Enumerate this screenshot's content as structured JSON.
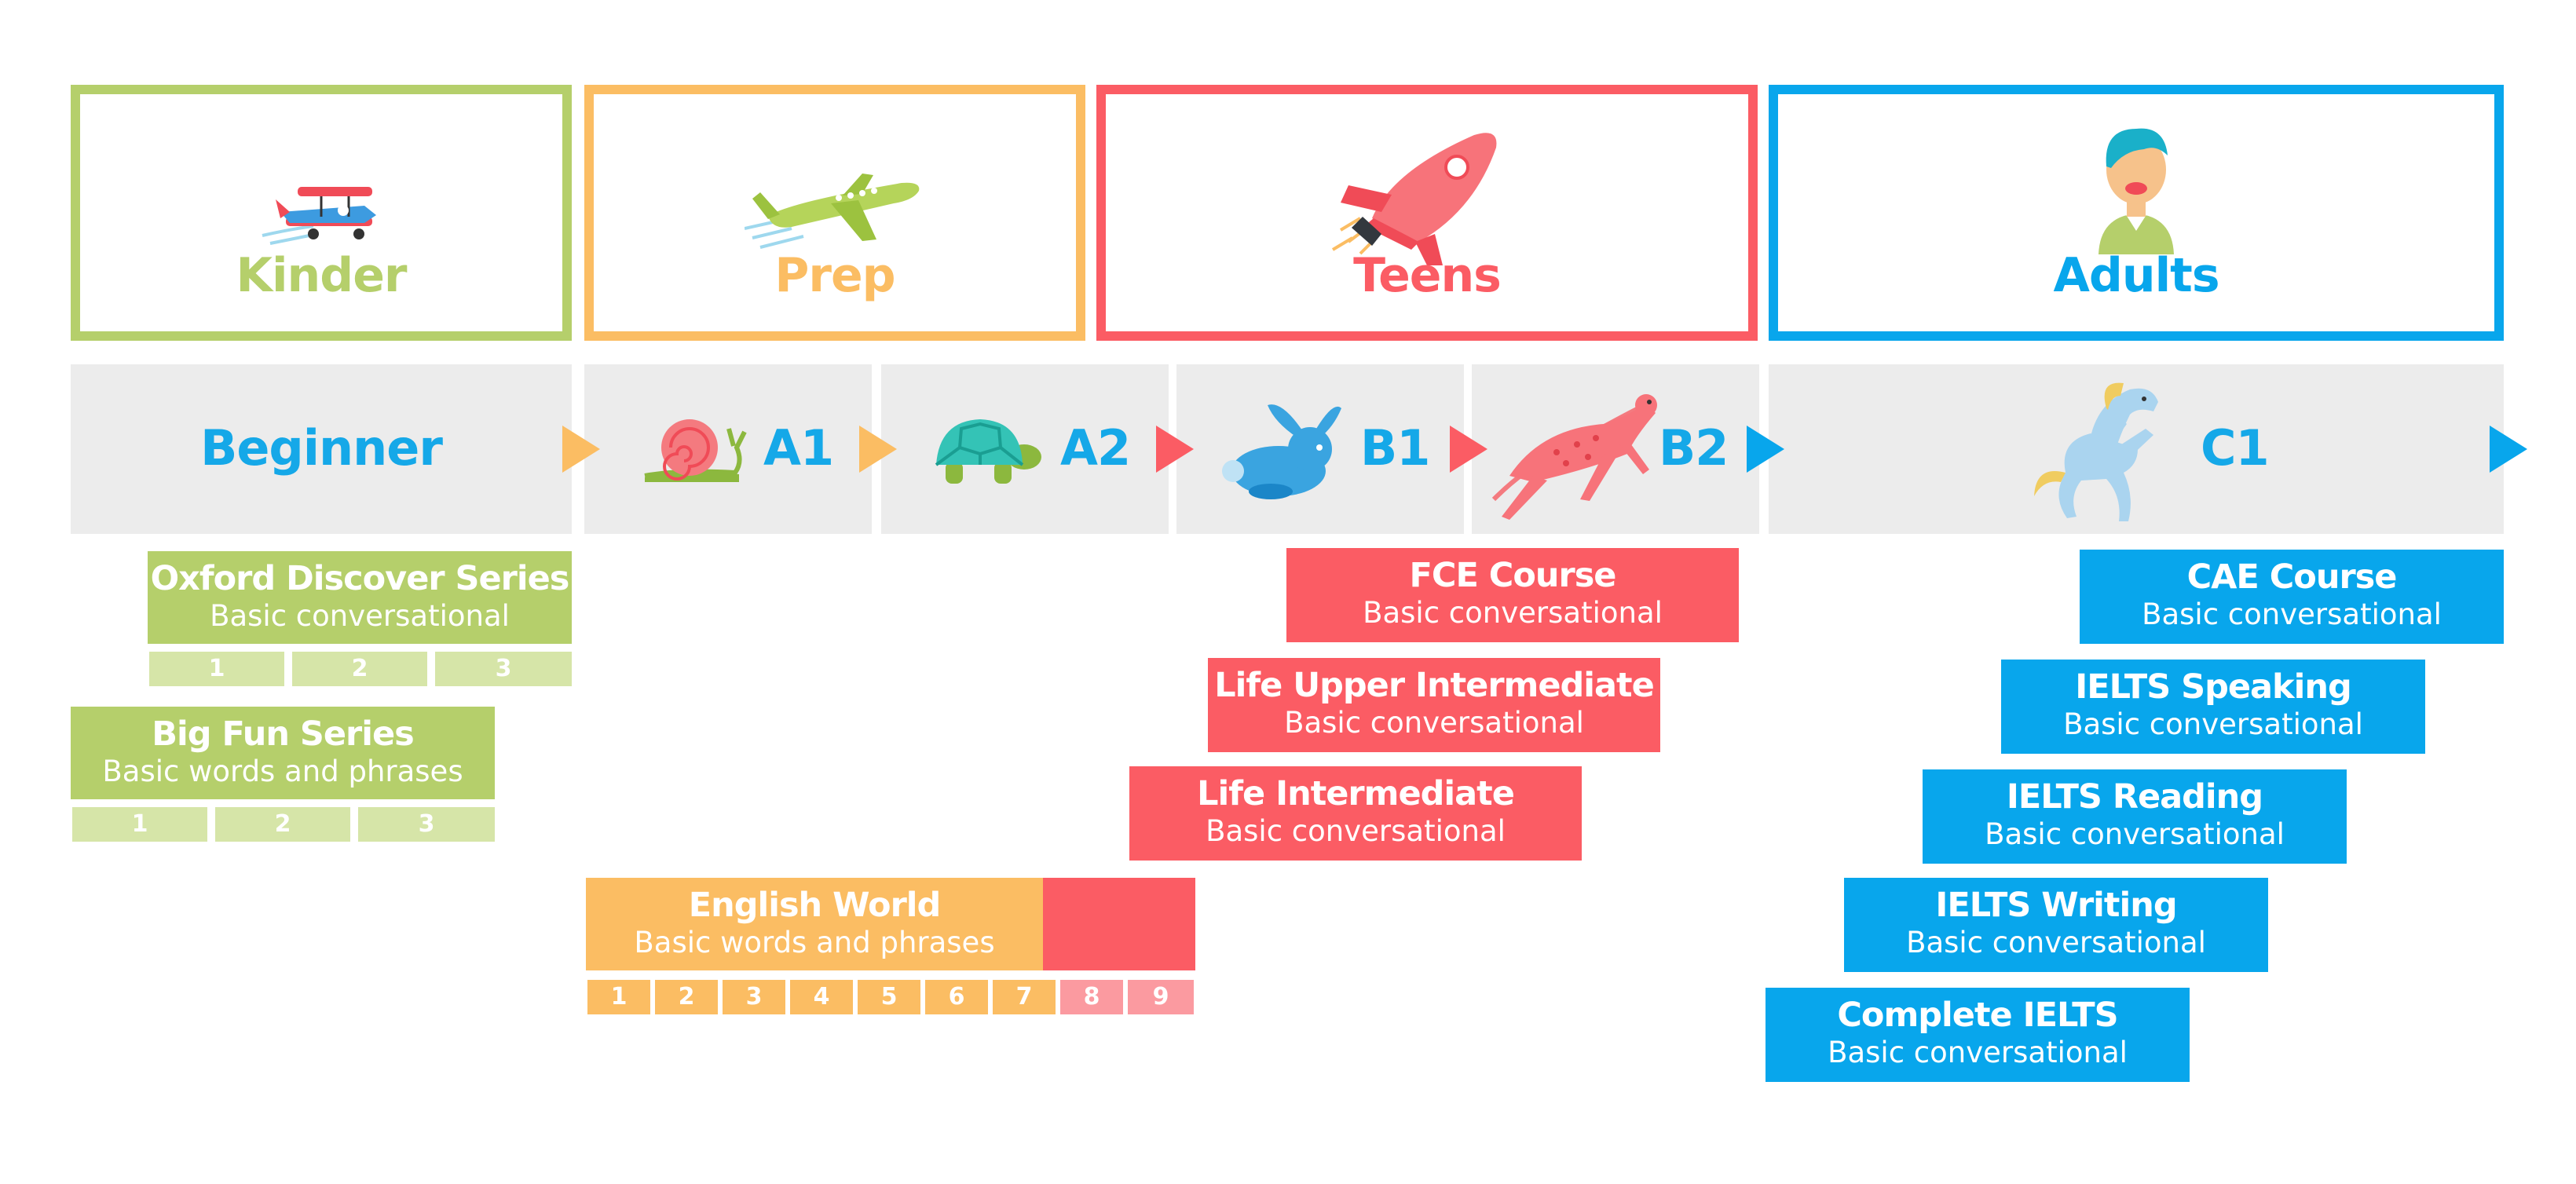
{
  "colors": {
    "kinder": "#b5cf6b",
    "prep": "#fbbd63",
    "teens": "#fb5c64",
    "adults": "#08a6ec",
    "kinder_light": "#d6e5a8",
    "teens_light": "#fb9aa0",
    "band_gray": "#ececec"
  },
  "categories": [
    {
      "label": "Kinder",
      "icon": "biplane-icon"
    },
    {
      "label": "Prep",
      "icon": "airplane-icon"
    },
    {
      "label": "Teens",
      "icon": "rocket-icon"
    },
    {
      "label": "Adults",
      "icon": "adult-person-icon"
    }
  ],
  "levels": [
    {
      "label": "Beginner",
      "icon": ""
    },
    {
      "label": "A1",
      "icon": "snail-icon"
    },
    {
      "label": "A2",
      "icon": "turtle-icon"
    },
    {
      "label": "B1",
      "icon": "rabbit-icon"
    },
    {
      "label": "B2",
      "icon": "cheetah-icon"
    },
    {
      "label": "C1",
      "icon": "horse-icon"
    }
  ],
  "courses": [
    {
      "title": "Oxford Discover Series",
      "subtitle": "Basic conversational",
      "steps": [
        "1",
        "2",
        "3"
      ]
    },
    {
      "title": "Big Fun Series",
      "subtitle": "Basic words and phrases",
      "steps": [
        "1",
        "2",
        "3"
      ]
    },
    {
      "title": "English World",
      "subtitle": "Basic words and phrases",
      "steps": [
        "1",
        "2",
        "3",
        "4",
        "5",
        "6",
        "7",
        "8",
        "9"
      ]
    },
    {
      "title": "FCE Course",
      "subtitle": "Basic conversational"
    },
    {
      "title": "Life Upper Intermediate",
      "subtitle": "Basic conversational"
    },
    {
      "title": "Life Intermediate",
      "subtitle": "Basic conversational"
    },
    {
      "title": "CAE Course",
      "subtitle": "Basic conversational"
    },
    {
      "title": "IELTS Speaking",
      "subtitle": "Basic conversational"
    },
    {
      "title": "IELTS Reading",
      "subtitle": "Basic conversational"
    },
    {
      "title": "IELTS Writing",
      "subtitle": "Basic conversational"
    },
    {
      "title": "Complete IELTS",
      "subtitle": "Basic conversational"
    }
  ]
}
